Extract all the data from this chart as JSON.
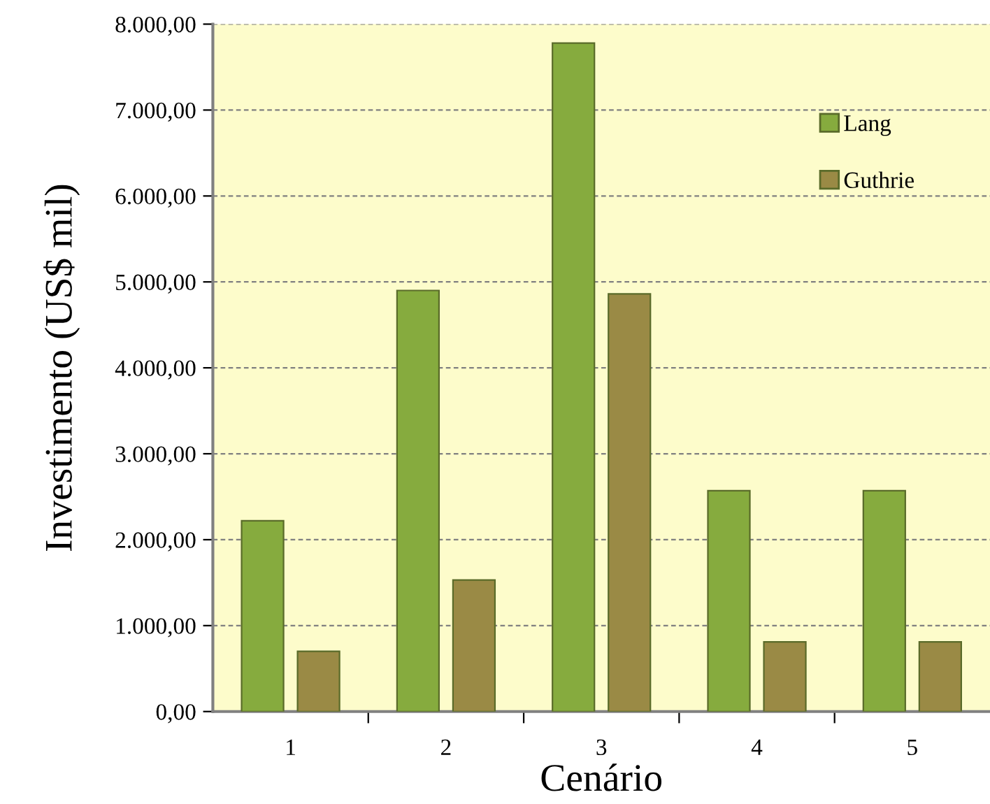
{
  "chart_data": {
    "type": "bar",
    "xlabel": "Cenário",
    "ylabel": "Investimento (US$ mil)",
    "categories": [
      "1",
      "2",
      "3",
      "4",
      "5"
    ],
    "series": [
      {
        "name": "Lang",
        "color": "#86ab3e",
        "values": [
          2220,
          4900,
          7780,
          2570,
          2570
        ]
      },
      {
        "name": "Guthrie",
        "color": "#9a8a45",
        "values": [
          700,
          1530,
          4860,
          810,
          810
        ]
      }
    ],
    "ylim": [
      0,
      8000
    ],
    "yticks": [
      {
        "value": 0,
        "label": "0,00"
      },
      {
        "value": 1000,
        "label": "1.000,00"
      },
      {
        "value": 2000,
        "label": "2.000,00"
      },
      {
        "value": 3000,
        "label": "3.000,00"
      },
      {
        "value": 4000,
        "label": "4.000,00"
      },
      {
        "value": 5000,
        "label": "5.000,00"
      },
      {
        "value": 6000,
        "label": "6.000,00"
      },
      {
        "value": 7000,
        "label": "7.000,00"
      },
      {
        "value": 8000,
        "label": "8.000,00"
      }
    ],
    "grid": "y",
    "legend": "top right"
  }
}
